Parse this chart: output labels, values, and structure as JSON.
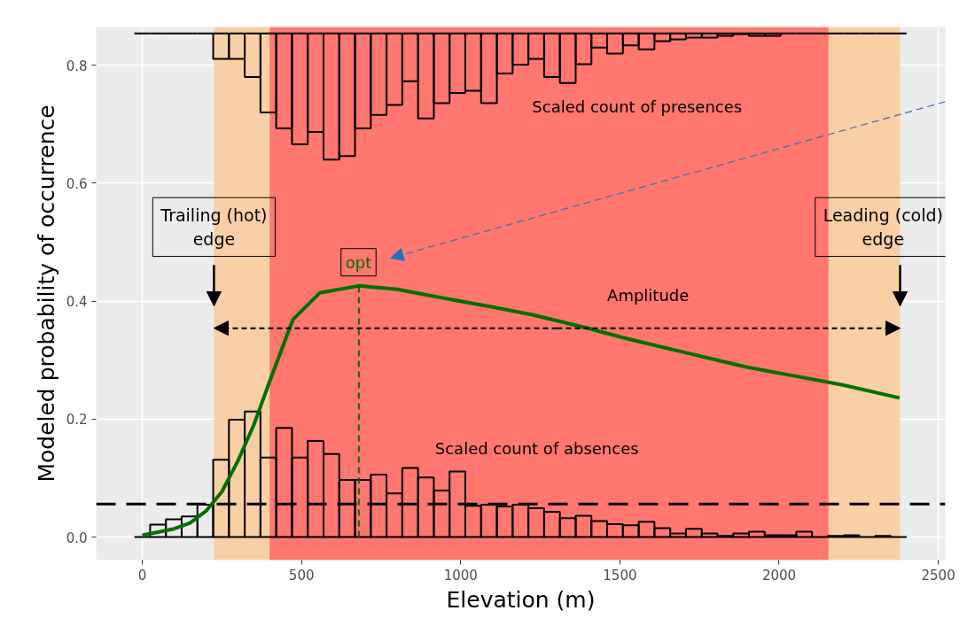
{
  "chart_data": {
    "type": "histogram",
    "xlabel": "Elevation (m)",
    "ylabel": "Modeled probability of occurrence",
    "xlim": [
      -145,
      2522
    ],
    "ylim": [
      -0.039,
      0.865
    ],
    "xticks": [
      0,
      500,
      1000,
      1500,
      2000,
      2500
    ],
    "yticks": [
      {
        "value": 0,
        "label": "0.0"
      },
      {
        "value": 0.2,
        "label": "0.2"
      },
      {
        "value": 0.4,
        "label": "0.4"
      },
      {
        "value": 0.6,
        "label": "0.6"
      },
      {
        "value": 0.8,
        "label": "0.8"
      }
    ],
    "grid": true,
    "bins": [
      -25,
      24.5,
      74,
      123.5,
      173,
      222.5,
      272,
      321.5,
      371,
      420.5,
      470,
      519.5,
      569,
      618.5,
      668,
      717.5,
      767,
      816.5,
      866,
      915.5,
      965,
      1014.5,
      1064,
      1113.5,
      1163,
      1212.5,
      1262,
      1311.5,
      1361,
      1410.5,
      1460,
      1509.5,
      1559,
      1608.5,
      1658,
      1707.5,
      1757,
      1806.5,
      1856,
      1905.5,
      1955,
      2004.5,
      2054,
      2103.5,
      2153,
      2202.5,
      2252,
      2301.5,
      2351,
      2400.5
    ],
    "bands": [
      {
        "axis": "x",
        "from": 225,
        "to": 2380,
        "color": "#f9cfa6"
      },
      {
        "axis": "x",
        "from": 400,
        "to": 2155,
        "color": "#ff776e"
      }
    ],
    "ref_lines": [
      {
        "axis": "y",
        "value": 0.056,
        "color": "#000000",
        "line_style": "dashed"
      }
    ],
    "series": [
      {
        "color": "#000000",
        "values": [
          0,
          0.021,
          0.03,
          0.035,
          0.055,
          0.131,
          0.199,
          0.213,
          0.135,
          0.185,
          0.135,
          0.163,
          0.141,
          0.097,
          0.097,
          0.106,
          0.074,
          0.117,
          0.101,
          0.079,
          0.111,
          0.053,
          0.055,
          0.052,
          0.055,
          0.049,
          0.043,
          0.032,
          0.036,
          0.027,
          0.022,
          0.02,
          0.026,
          0.015,
          0.006,
          0.014,
          0.006,
          0.002,
          0.006,
          0.009,
          0.003,
          0.003,
          0.009,
          0,
          0.002,
          0.003,
          0,
          0.002,
          0
        ]
      },
      {
        "color": "#000000",
        "base": [
          0.854,
          0.854,
          0.854,
          0.854,
          0.854,
          0.854,
          0.854,
          0.854,
          0.854,
          0.854,
          0.854,
          0.854,
          0.854,
          0.854,
          0.854,
          0.854,
          0.854,
          0.854,
          0.854,
          0.854,
          0.854,
          0.854,
          0.854,
          0.854,
          0.854,
          0.854,
          0.854,
          0.854,
          0.854,
          0.854,
          0.854,
          0.854,
          0.854,
          0.854,
          0.854,
          0.854,
          0.854,
          0.854,
          0.854,
          0.854,
          0.854,
          0.854,
          0.854,
          0.854,
          0.854,
          0.854,
          0.854,
          0.854,
          0.854
        ],
        "values": [
          0,
          0,
          0,
          0,
          0,
          -0.043,
          -0.043,
          -0.074,
          -0.134,
          -0.161,
          -0.188,
          -0.167,
          -0.214,
          -0.208,
          -0.161,
          -0.138,
          -0.121,
          -0.081,
          -0.144,
          -0.118,
          -0.101,
          -0.097,
          -0.118,
          -0.068,
          -0.053,
          -0.043,
          -0.074,
          -0.084,
          -0.052,
          -0.024,
          -0.034,
          -0.02,
          -0.027,
          -0.013,
          -0.01,
          -0.007,
          -0.007,
          -0.004,
          -0.001,
          -0.004,
          -0.004,
          0,
          0,
          0,
          0,
          0,
          0,
          0,
          0
        ]
      },
      {
        "type": "line",
        "color": "#007000",
        "line_style": "solid",
        "x": [
          0,
          100,
          150,
          200,
          250,
          300,
          350,
          400,
          473,
          557,
          679,
          800,
          947,
          1100,
          1225,
          1400,
          1503,
          1650,
          1782,
          1900,
          2060,
          2200,
          2378
        ],
        "values": [
          0.003,
          0.014,
          0.024,
          0.044,
          0.077,
          0.129,
          0.19,
          0.264,
          0.369,
          0.414,
          0.426,
          0.42,
          0.405,
          0.39,
          0.377,
          0.354,
          0.339,
          0.32,
          0.303,
          0.288,
          0.272,
          0.258,
          0.236
        ]
      },
      {
        "type": "line",
        "color": "#007000",
        "line_style": "dashed",
        "x": [
          680,
          680
        ],
        "values": [
          0,
          0.426
        ]
      }
    ],
    "annotations": [
      {
        "text": "Trailing (hot)\nedge",
        "x": 225,
        "y": 0.392
      },
      {
        "text": "Leading (cold)\nedge",
        "x": 2380,
        "y": 0.392
      },
      {
        "text": "opt",
        "x": 679,
        "y": 0.466
      },
      "Amplitude",
      "Scaled count of presences",
      "Scaled count of absences"
    ]
  }
}
